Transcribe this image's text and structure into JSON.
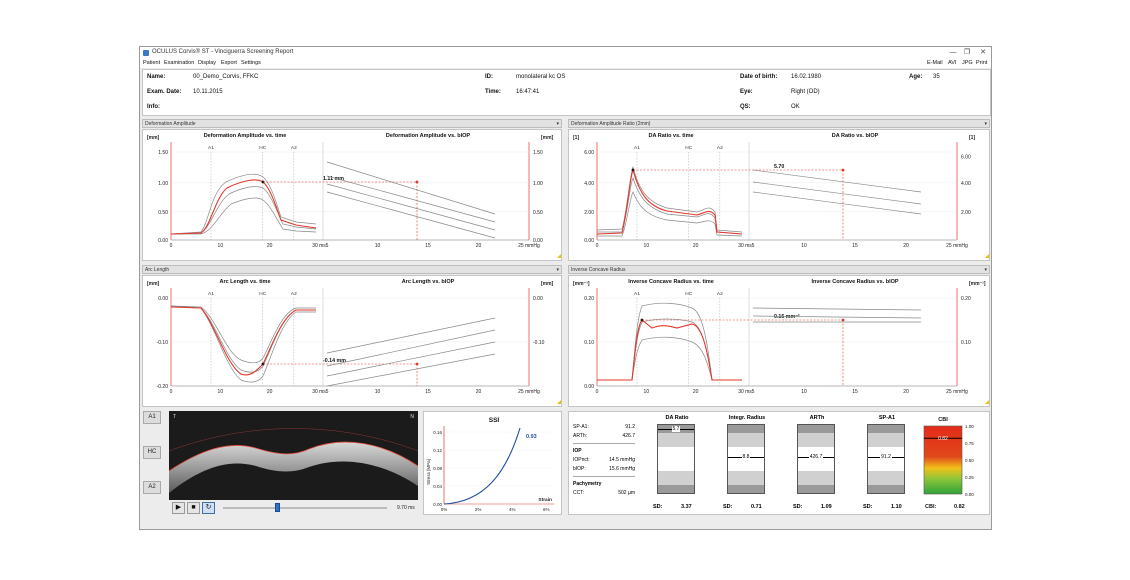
{
  "window": {
    "title": "OCULUS Corvis® ST - Vinciguerra Screening Report",
    "buttons": [
      "—",
      "❐",
      "✕"
    ]
  },
  "menu": {
    "left": [
      "Patient",
      "Examination",
      "Display",
      "Export",
      "Settings"
    ],
    "right": [
      "E-Mail",
      "AVI",
      "JPG",
      "Print"
    ]
  },
  "patient": {
    "name_label": "Name:",
    "name": "00_Demo_Corvis, FFKC",
    "id_label": "ID:",
    "id": "monolateral kc OS",
    "dob_label": "Date of birth:",
    "dob": "16.02.1980",
    "age_label": "Age:",
    "age": "35",
    "exam_label": "Exam. Date:",
    "exam": "10.11.2015",
    "time_label": "Time:",
    "time": "16:47:41",
    "eye_label": "Eye:",
    "eye": "Right (OD)",
    "info_label": "Info:",
    "info": "",
    "qs_label": "QS:",
    "qs": "OK"
  },
  "sections": {
    "s1": "Deformation Amplitude",
    "s2": "Deformation Amplitude Ratio (2mm)",
    "s3": "Arc Length",
    "s4": "Inverse Concave Radius"
  },
  "colors": {
    "red": "#e4372a",
    "gray": "#888888",
    "blue": "#1f4e9e"
  },
  "charts": {
    "da": {
      "title_time": "Deformation Amplitude vs. time",
      "title_iop": "Deformation Amplitude vs. bIOP",
      "unit": "[mm]",
      "y_ticks": [
        "1.50",
        "1.00",
        "0.50",
        "0.00"
      ],
      "y_ticks_right": [
        "1.50",
        "1.00",
        "0.50",
        "0.00"
      ],
      "x_ticks_time": [
        "0",
        "10",
        "20",
        "30 ms"
      ],
      "x_ticks_iop": [
        "5",
        "10",
        "15",
        "20",
        "25 mmHg"
      ],
      "markers": [
        "A1",
        "HC",
        "A2"
      ],
      "readout": "1.11 mm"
    },
    "dar": {
      "title_time": "DA Ratio vs. time",
      "title_iop": "DA Ratio vs. bIOP",
      "unit": "[1]",
      "y_ticks": [
        "6.00",
        "4.00",
        "2.00",
        "0.00"
      ],
      "y_ticks_right": [
        "6.00",
        "4.00",
        "2.00"
      ],
      "x_ticks_time": [
        "0",
        "10",
        "20",
        "30 ms"
      ],
      "x_ticks_iop": [
        "5",
        "10",
        "15",
        "20",
        "25 mmHg"
      ],
      "markers": [
        "A1",
        "HC",
        "A2"
      ],
      "readout": "5.70"
    },
    "arc": {
      "title_time": "Arc Length vs. time",
      "title_iop": "Arc Length vs. bIOP",
      "unit": "[mm]",
      "y_ticks": [
        "0.00",
        "-0.10",
        "-0.20"
      ],
      "y_ticks_right": [
        "0.00",
        "-0.10"
      ],
      "x_ticks_time": [
        "0",
        "10",
        "20",
        "30 ms"
      ],
      "x_ticks_iop": [
        "5",
        "10",
        "15",
        "20",
        "25 mmHg"
      ],
      "markers": [
        "A1",
        "HC",
        "A2"
      ],
      "readout": "-0.14 mm"
    },
    "icr": {
      "title_time": "Inverse Concave Radius vs. time",
      "title_iop": "Inverse Concave Radius vs. bIOP",
      "unit": "[mm⁻¹]",
      "y_ticks": [
        "0.20",
        "0.10",
        "0.00"
      ],
      "y_ticks_right": [
        "0.20",
        "0.10"
      ],
      "x_ticks_time": [
        "0",
        "10",
        "20",
        "30 ms"
      ],
      "x_ticks_iop": [
        "5",
        "10",
        "15",
        "20",
        "25 mmHg"
      ],
      "markers": [
        "A1",
        "HC",
        "A2"
      ],
      "readout": "0.16 mm⁻¹"
    }
  },
  "video": {
    "side_buttons": [
      "A1",
      "HC",
      "A2"
    ],
    "left_label": "T",
    "right_label": "N",
    "play": "▶",
    "stop": "■",
    "loop": "↻",
    "time": "9.70 ms",
    "slider_value": 0.33
  },
  "ssi": {
    "title": "SSI",
    "value": "0.93",
    "y_label": "Stress [MPa]",
    "x_label": "Strain",
    "y_ticks": [
      "0.16",
      "0.12",
      "0.08",
      "0.04",
      "0.00"
    ],
    "x_ticks": [
      "0%",
      "2%",
      "4%",
      "6%"
    ]
  },
  "cbi": {
    "params": [
      {
        "k": "SP-A1:",
        "v": "91.2"
      },
      {
        "k": "ARTh:",
        "v": "426.7"
      }
    ],
    "iop_title": "IOP",
    "iop": [
      {
        "k": "IOPnct:",
        "v": "14.5 mmHg"
      },
      {
        "k": "bIOP:",
        "v": "15.6 mmHg"
      }
    ],
    "pachy_title": "Pachymetry",
    "pachy": [
      {
        "k": "CCT:",
        "v": "502 µm"
      }
    ],
    "gauges": [
      {
        "title": "DA Ratio",
        "value": "5.7",
        "sd_label": "SD:",
        "sd": "3.37",
        "level": 0.95
      },
      {
        "title": "Integr. Radius",
        "value": "8.8",
        "sd_label": "SD:",
        "sd": "0.71",
        "level": 0.55
      },
      {
        "title": "ARTh",
        "value": "426.7",
        "sd_label": "SD:",
        "sd": "1.09",
        "level": 0.55
      },
      {
        "title": "SP-A1",
        "value": "91.2",
        "sd_label": "SD:",
        "sd": "1.10",
        "level": 0.55
      }
    ],
    "cbi_title": "CBI",
    "cbi_value": "0.82",
    "cbi_label": "CBI:",
    "cbi_ticks": [
      "1.00",
      "0.75",
      "0.50",
      "0.25",
      "0.00"
    ],
    "cbi_level": 0.82
  }
}
